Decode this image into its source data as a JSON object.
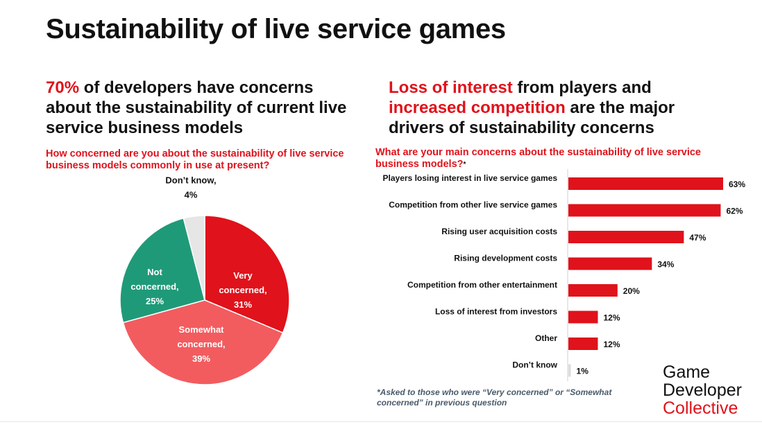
{
  "title": "Sustainability of live service games",
  "left_headline": {
    "highlight": "70%",
    "rest": " of developers have concerns about the sustainability of current live service business models"
  },
  "right_headline": {
    "h1": "Loss of interest",
    "t1": " from players and ",
    "h2": "increased competition",
    "t2": " are the major drivers of sustainability concerns"
  },
  "pie_question": "How concerned are you about the sustainability of live service business models commonly in use at present?",
  "bar_question": "What are your main concerns about the sustainability of live service business models?",
  "bar_question_mark": "*",
  "footnote": "*Asked to those who were “Very concerned” or “Somewhat concerned” in previous question",
  "logo": {
    "line1": "Game",
    "line2": "Developer",
    "line3": "Collective"
  },
  "colors": {
    "accent": "#e0121b",
    "very": "#e0121b",
    "somewhat": "#f25c5f",
    "not": "#1f9a79",
    "dontknow": "#e6e6e6",
    "bar": "#e0121b"
  },
  "chart_data": [
    {
      "type": "pie",
      "slices": [
        {
          "label_lines": [
            "Very",
            "concerned,",
            "31%"
          ],
          "value": 31,
          "color": "#e0121b"
        },
        {
          "label_lines": [
            "Somewhat",
            "concerned,",
            "39%"
          ],
          "value": 39,
          "color": "#f25c5f"
        },
        {
          "label_lines": [
            "Not",
            "concerned,",
            "25%"
          ],
          "value": 25,
          "color": "#1f9a79"
        },
        {
          "label_lines": [
            "Don’t know,",
            "4%"
          ],
          "value": 4,
          "color": "#e6e6e6"
        }
      ]
    },
    {
      "type": "bar",
      "orientation": "horizontal",
      "categories": [
        "Players losing interest in live service games",
        "Competition from other live service games",
        "Rising user acquisition costs",
        "Rising development costs",
        "Competition from other entertainment",
        "Loss of interest from investors",
        "Other",
        "Don’t know"
      ],
      "values": [
        63,
        62,
        47,
        34,
        20,
        12,
        12,
        1
      ],
      "value_labels": [
        "63%",
        "62%",
        "47%",
        "34%",
        "20%",
        "12%",
        "12%",
        "1%"
      ]
    }
  ]
}
